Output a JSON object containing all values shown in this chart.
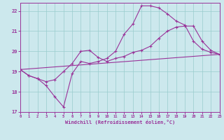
{
  "xlabel": "Windchill (Refroidissement éolien,°C)",
  "bg_color": "#cce8ed",
  "grid_color": "#99cccc",
  "line_color": "#993399",
  "xlim": [
    0,
    23
  ],
  "ylim": [
    17,
    22.4
  ],
  "xticks": [
    0,
    1,
    2,
    3,
    4,
    5,
    6,
    7,
    8,
    9,
    10,
    11,
    12,
    13,
    14,
    15,
    16,
    17,
    18,
    19,
    20,
    21,
    22,
    23
  ],
  "yticks": [
    17,
    18,
    19,
    20,
    21,
    22
  ],
  "series1_x": [
    0,
    1,
    2,
    3,
    4,
    5,
    6,
    7,
    8,
    9,
    10,
    11,
    12,
    13,
    14,
    15,
    16,
    17,
    18,
    19,
    20,
    21,
    22,
    23
  ],
  "series1_y": [
    19.1,
    18.8,
    18.65,
    18.3,
    17.75,
    17.25,
    18.9,
    19.5,
    19.4,
    19.5,
    19.65,
    20.0,
    20.85,
    21.35,
    22.25,
    22.25,
    22.15,
    21.85,
    21.5,
    21.3,
    20.5,
    20.1,
    19.95,
    19.85
  ],
  "series2_x": [
    0,
    1,
    2,
    3,
    4,
    5,
    6,
    7,
    8,
    9,
    10,
    11,
    12,
    13,
    14,
    15,
    16,
    17,
    18,
    19,
    20,
    21,
    22,
    23
  ],
  "series2_y": [
    19.1,
    18.8,
    18.65,
    18.5,
    18.6,
    19.0,
    19.4,
    20.0,
    20.05,
    19.7,
    19.5,
    19.65,
    19.75,
    19.95,
    20.05,
    20.25,
    20.65,
    21.0,
    21.2,
    21.25,
    21.25,
    20.5,
    20.05,
    19.85
  ],
  "series3_x": [
    0,
    23
  ],
  "series3_y": [
    19.1,
    19.85
  ]
}
